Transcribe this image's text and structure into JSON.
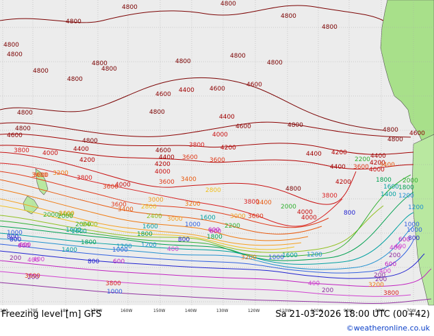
{
  "map": {
    "title": "Freezing level [m] GFS",
    "valid_time": "Sa 21-03-2026 18:00 UTC (00+42)",
    "credit": "©weatheronline.co.uk",
    "colors": {
      "ocean": "#ececec",
      "land_north": "#a8e08a",
      "land_south": "#b9e8a0",
      "grid": "#a7a7a7",
      "coast": "#555555"
    },
    "longitude_ticks": [
      "180",
      "170E",
      "180",
      "170W",
      "160W",
      "150W",
      "140W",
      "130W",
      "120W",
      "110W",
      "100W",
      "90W",
      "80W",
      "70W"
    ],
    "isolines": [
      {
        "level": "4800",
        "color": "#7a0000"
      },
      {
        "level": "4600",
        "color": "#8b0000"
      },
      {
        "level": "4400",
        "color": "#a00000"
      },
      {
        "level": "4200",
        "color": "#b40000"
      },
      {
        "level": "4000",
        "color": "#c81010"
      },
      {
        "level": "3800",
        "color": "#d82020"
      },
      {
        "level": "3600",
        "color": "#e03a1a"
      },
      {
        "level": "3400",
        "color": "#e85a10"
      },
      {
        "level": "3200",
        "color": "#f07a10"
      },
      {
        "level": "3000",
        "color": "#f5a020"
      },
      {
        "level": "2800",
        "color": "#f0c020"
      },
      {
        "level": "2400",
        "color": "#90c020"
      },
      {
        "level": "2200",
        "color": "#30b030"
      },
      {
        "level": "1800",
        "color": "#00a050"
      },
      {
        "level": "1600",
        "color": "#00a0a0"
      },
      {
        "level": "1200",
        "color": "#2090d0"
      },
      {
        "level": "1000",
        "color": "#3060e0"
      },
      {
        "level": "800",
        "color": "#2020d0"
      },
      {
        "level": "600",
        "color": "#c020c0"
      },
      {
        "level": "400",
        "color": "#d040d0"
      },
      {
        "level": "200",
        "color": "#9030a0"
      }
    ],
    "labels": [
      {
        "text": "4800",
        "color": "#7a0000"
      },
      {
        "text": "4800",
        "color": "#7a0000"
      },
      {
        "text": "4800",
        "color": "#7a0000"
      },
      {
        "text": "4800",
        "color": "#7a0000"
      },
      {
        "text": "4800",
        "color": "#7a0000"
      },
      {
        "text": "4800",
        "color": "#7a0000"
      },
      {
        "text": "4800",
        "color": "#7a0000"
      },
      {
        "text": "4800",
        "color": "#7a0000"
      },
      {
        "text": "4800",
        "color": "#7a0000"
      },
      {
        "text": "4800",
        "color": "#7a0000"
      },
      {
        "text": "4800",
        "color": "#7a0000"
      },
      {
        "text": "4800",
        "color": "#7a0000"
      },
      {
        "text": "4800",
        "color": "#7a0000"
      },
      {
        "text": "4800",
        "color": "#7a0000"
      },
      {
        "text": "4800",
        "color": "#7a0000"
      },
      {
        "text": "4800",
        "color": "#7a0000"
      },
      {
        "text": "4800",
        "color": "#7a0000"
      },
      {
        "text": "4600",
        "color": "#8b0000"
      },
      {
        "text": "4400",
        "color": "#a00000"
      },
      {
        "text": "4600",
        "color": "#8b0000"
      },
      {
        "text": "4600",
        "color": "#8b0000"
      },
      {
        "text": "4800",
        "color": "#7a0000"
      },
      {
        "text": "4800",
        "color": "#7a0000"
      },
      {
        "text": "4400",
        "color": "#a00000"
      },
      {
        "text": "4600",
        "color": "#8b0000"
      },
      {
        "text": "4800",
        "color": "#7a0000"
      },
      {
        "text": "4800",
        "color": "#7a0000"
      },
      {
        "text": "4600",
        "color": "#8b0000"
      },
      {
        "text": "4400",
        "color": "#a00000"
      },
      {
        "text": "4000",
        "color": "#c81010"
      },
      {
        "text": "3800",
        "color": "#d82020"
      },
      {
        "text": "4200",
        "color": "#b40000"
      },
      {
        "text": "3800",
        "color": "#d82020"
      },
      {
        "text": "4000",
        "color": "#c81010"
      },
      {
        "text": "4600",
        "color": "#8b0000"
      },
      {
        "text": "4400",
        "color": "#a00000"
      },
      {
        "text": "4200",
        "color": "#b40000"
      },
      {
        "text": "4000",
        "color": "#c81010"
      },
      {
        "text": "3600",
        "color": "#e03a1a"
      },
      {
        "text": "4400",
        "color": "#a00000"
      },
      {
        "text": "3600",
        "color": "#e03a1a"
      },
      {
        "text": "3800",
        "color": "#d82020"
      },
      {
        "text": "3600",
        "color": "#e03a1a"
      },
      {
        "text": "4200",
        "color": "#b40000"
      },
      {
        "text": "4000",
        "color": "#c81010"
      },
      {
        "text": "4200",
        "color": "#b40000"
      },
      {
        "text": "4400",
        "color": "#a00000"
      },
      {
        "text": "3600",
        "color": "#e03a1a"
      },
      {
        "text": "3400",
        "color": "#e85a10"
      },
      {
        "text": "4000",
        "color": "#c81010"
      },
      {
        "text": "3600",
        "color": "#e03a1a"
      },
      {
        "text": "3800",
        "color": "#d82020"
      },
      {
        "text": "4200",
        "color": "#b40000"
      },
      {
        "text": "4800",
        "color": "#7a0000"
      },
      {
        "text": "4600",
        "color": "#8b0000"
      },
      {
        "text": "4400",
        "color": "#a00000"
      },
      {
        "text": "4200",
        "color": "#b40000"
      },
      {
        "text": "4000",
        "color": "#c81010"
      },
      {
        "text": "3800",
        "color": "#d82020"
      },
      {
        "text": "3600",
        "color": "#e03a1a"
      },
      {
        "text": "3400",
        "color": "#e85a10"
      },
      {
        "text": "3000",
        "color": "#f5a020"
      },
      {
        "text": "2800",
        "color": "#f0c020"
      },
      {
        "text": "2400",
        "color": "#90c020"
      },
      {
        "text": "2200",
        "color": "#30b030"
      },
      {
        "text": "2000",
        "color": "#30b030"
      },
      {
        "text": "1800",
        "color": "#00a050"
      },
      {
        "text": "1600",
        "color": "#00a0a0"
      },
      {
        "text": "1200",
        "color": "#2090d0"
      },
      {
        "text": "1000",
        "color": "#3060e0"
      },
      {
        "text": "800",
        "color": "#2020d0"
      },
      {
        "text": "600",
        "color": "#c020c0"
      },
      {
        "text": "400",
        "color": "#d040d0"
      },
      {
        "text": "200",
        "color": "#9030a0"
      },
      {
        "text": "3200",
        "color": "#f07a10"
      },
      {
        "text": "2400",
        "color": "#90c020"
      },
      {
        "text": "2000",
        "color": "#30b030"
      },
      {
        "text": "1600",
        "color": "#00a0a0"
      },
      {
        "text": "1000",
        "color": "#3060e0"
      },
      {
        "text": "800",
        "color": "#2020d0"
      },
      {
        "text": "600",
        "color": "#c020c0"
      },
      {
        "text": "400",
        "color": "#d040d0"
      },
      {
        "text": "200",
        "color": "#9030a0"
      },
      {
        "text": "3600",
        "color": "#e03a1a"
      },
      {
        "text": "3400",
        "color": "#e85a10"
      },
      {
        "text": "3200",
        "color": "#f07a10"
      },
      {
        "text": "3000",
        "color": "#f5a020"
      },
      {
        "text": "2000",
        "color": "#30b030"
      },
      {
        "text": "1800",
        "color": "#00a050"
      },
      {
        "text": "1600",
        "color": "#00a0a0"
      },
      {
        "text": "1400",
        "color": "#00a0a0"
      },
      {
        "text": "1200",
        "color": "#2090d0"
      },
      {
        "text": "1000",
        "color": "#3060e0"
      },
      {
        "text": "800",
        "color": "#2020d0"
      },
      {
        "text": "600",
        "color": "#c020c0"
      },
      {
        "text": "400",
        "color": "#d040d0"
      },
      {
        "text": "200",
        "color": "#9030a0"
      },
      {
        "text": "1000",
        "color": "#3060e0"
      },
      {
        "text": "800",
        "color": "#2020d0"
      },
      {
        "text": "600",
        "color": "#c020c0"
      },
      {
        "text": "400",
        "color": "#d040d0"
      },
      {
        "text": "3800",
        "color": "#d82020"
      },
      {
        "text": "3600",
        "color": "#e03a1a"
      },
      {
        "text": "3400",
        "color": "#e85a10"
      },
      {
        "text": "3000",
        "color": "#f5a020"
      },
      {
        "text": "2000",
        "color": "#30b030"
      },
      {
        "text": "1800",
        "color": "#00a050"
      },
      {
        "text": "1600",
        "color": "#00a0a0"
      },
      {
        "text": "1200",
        "color": "#2090d0"
      },
      {
        "text": "1000",
        "color": "#3060e0"
      },
      {
        "text": "3200",
        "color": "#f07a10"
      },
      {
        "text": "2400",
        "color": "#90c020"
      },
      {
        "text": "2000",
        "color": "#30b030"
      },
      {
        "text": "1800",
        "color": "#00a050"
      },
      {
        "text": "1600",
        "color": "#00a0a0"
      },
      {
        "text": "1200",
        "color": "#2090d0"
      },
      {
        "text": "1000",
        "color": "#3060e0"
      },
      {
        "text": "800",
        "color": "#2020d0"
      },
      {
        "text": "600",
        "color": "#c020c0"
      },
      {
        "text": "400",
        "color": "#d040d0"
      },
      {
        "text": "200",
        "color": "#9030a0"
      },
      {
        "text": "3800",
        "color": "#d82020"
      },
      {
        "text": "4000",
        "color": "#c81010"
      },
      {
        "text": "3600",
        "color": "#e03a1a"
      },
      {
        "text": "3400",
        "color": "#e85a10"
      },
      {
        "text": "3200",
        "color": "#f07a10"
      },
      {
        "text": "3000",
        "color": "#f5a020"
      },
      {
        "text": "2800",
        "color": "#f0c020"
      },
      {
        "text": "2200",
        "color": "#30b030"
      },
      {
        "text": "1800",
        "color": "#00a050"
      },
      {
        "text": "1600",
        "color": "#00a0a0"
      },
      {
        "text": "1400",
        "color": "#00a0a0"
      },
      {
        "text": "1200",
        "color": "#2090d0"
      },
      {
        "text": "1000",
        "color": "#3060e0"
      },
      {
        "text": "800",
        "color": "#2020d0"
      },
      {
        "text": "600",
        "color": "#c020c0"
      },
      {
        "text": "400",
        "color": "#d040d0"
      },
      {
        "text": "200",
        "color": "#9030a0"
      },
      {
        "text": "600",
        "color": "#c020c0"
      },
      {
        "text": "400",
        "color": "#d040d0"
      },
      {
        "text": "200",
        "color": "#9030a0"
      }
    ]
  }
}
